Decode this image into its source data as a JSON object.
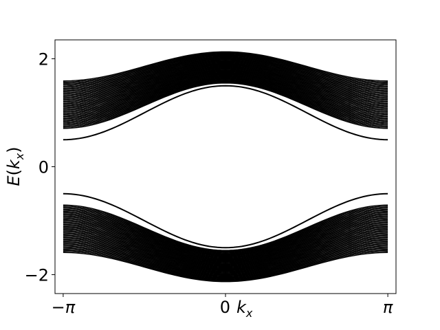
{
  "chart_data": {
    "type": "line",
    "title": "",
    "xlabel": "0kx",
    "ylabel": "E(kx)",
    "xlim": [
      -3.3,
      3.3
    ],
    "ylim": [
      -2.35,
      2.35
    ],
    "grid": false,
    "legend": "none",
    "x_ticks": [
      {
        "value": -3.14159,
        "label": "−π"
      },
      {
        "value": 0,
        "label": "0"
      },
      {
        "value": 3.14159,
        "label": "π"
      }
    ],
    "y_ticks": [
      {
        "value": 2,
        "label": "2"
      },
      {
        "value": 0,
        "label": "0"
      },
      {
        "value": -2,
        "label": "−2"
      }
    ],
    "series_color": "#000000",
    "bands": {
      "description_free": true,
      "band_count_per_side": 45,
      "upper_band_edge_at_k0": [
        1.55,
        2.13
      ],
      "upper_band_edge_at_kpi": [
        0.71,
        1.59
      ],
      "lower_band_edge_at_k0": [
        -2.13,
        -1.55
      ],
      "lower_band_edge_at_kpi": [
        -1.59,
        -0.71
      ]
    },
    "series": [
      {
        "label": "edge-upper",
        "x": [
          -3.14159,
          -1.5708,
          0,
          1.5708,
          3.14159
        ],
        "y": [
          0.5,
          1.0,
          1.5,
          1.0,
          0.5
        ]
      },
      {
        "label": "edge-lower",
        "x": [
          -3.14159,
          -1.5708,
          0,
          1.5708,
          3.14159
        ],
        "y": [
          -0.5,
          -1.0,
          -1.5,
          -1.0,
          -0.5
        ]
      }
    ]
  }
}
